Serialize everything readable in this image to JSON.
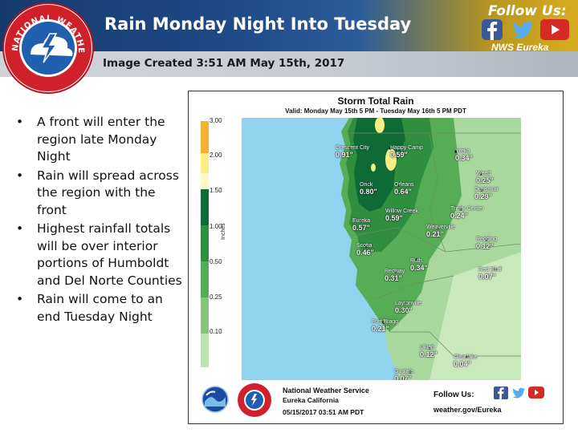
{
  "header": {
    "title": "Rain Monday Night Into Tuesday",
    "image_created": "Image Created 3:51 AM May 15th, 2017",
    "follow_us": "Follow Us:",
    "nws_office": "NWS Eureka",
    "logo_text": "NATIONAL WEATHER SERVICE"
  },
  "bullets": [
    "A front will enter the region late Monday Night",
    "Rain will spread across the region with the front",
    "Highest rainfall totals will be over interior portions of Humboldt and Del Norte Counties",
    "Rain will come to an end Tuesday Night"
  ],
  "map": {
    "title": "Storm Total Rain",
    "valid": "Valid: Monday May 15th 5 PM - Tuesday May 16th 5 PM PDT",
    "colorbar_unit": "Inches",
    "colorbar_labels": [
      "3.00",
      "2.00",
      "1.50",
      "1.00",
      "0.50",
      "0.25",
      "0.10"
    ],
    "locations": [
      {
        "name": "Crescent City",
        "value": "0.91\""
      },
      {
        "name": "Happy Camp",
        "value": "0.59\""
      },
      {
        "name": "Yreka",
        "value": "0.34\""
      },
      {
        "name": "Weed",
        "value": "0.25\""
      },
      {
        "name": "Orick",
        "value": "0.80\""
      },
      {
        "name": "Orleans",
        "value": "0.64\""
      },
      {
        "name": "Dunsmuir",
        "value": "0.29\""
      },
      {
        "name": "Willow Creek",
        "value": "0.59\""
      },
      {
        "name": "Trinity Center",
        "value": "0.24\""
      },
      {
        "name": "Eureka",
        "value": "0.57\""
      },
      {
        "name": "Weaverville",
        "value": "0.21\""
      },
      {
        "name": "Redding",
        "value": "0.12\""
      },
      {
        "name": "Scotia",
        "value": "0.46\""
      },
      {
        "name": "Ruth",
        "value": "0.34\""
      },
      {
        "name": "Redway",
        "value": "0.31\""
      },
      {
        "name": "Red Bluff",
        "value": "0.07\""
      },
      {
        "name": "Laytonville",
        "value": "0.30\""
      },
      {
        "name": "Fort Bragg",
        "value": "0.21\""
      },
      {
        "name": "Ukiah",
        "value": "0.12\""
      },
      {
        "name": "Clearlake",
        "value": "0.04\""
      },
      {
        "name": "Gualala",
        "value": "0.07\""
      }
    ],
    "footer": {
      "agency": "National Weather Service",
      "office": "Eureka California",
      "datetime": "05/15/2017 03:51 AM PDT",
      "follow": "Follow Us:",
      "website": "weather.gov/Eureka"
    }
  },
  "colors": {
    "header_blue": "#1e4a86",
    "header_gold": "#d7ac1f",
    "ocean": "#8fd3ef",
    "rain_dark": "#0f6b35",
    "rain_light": "#a9d89e"
  }
}
